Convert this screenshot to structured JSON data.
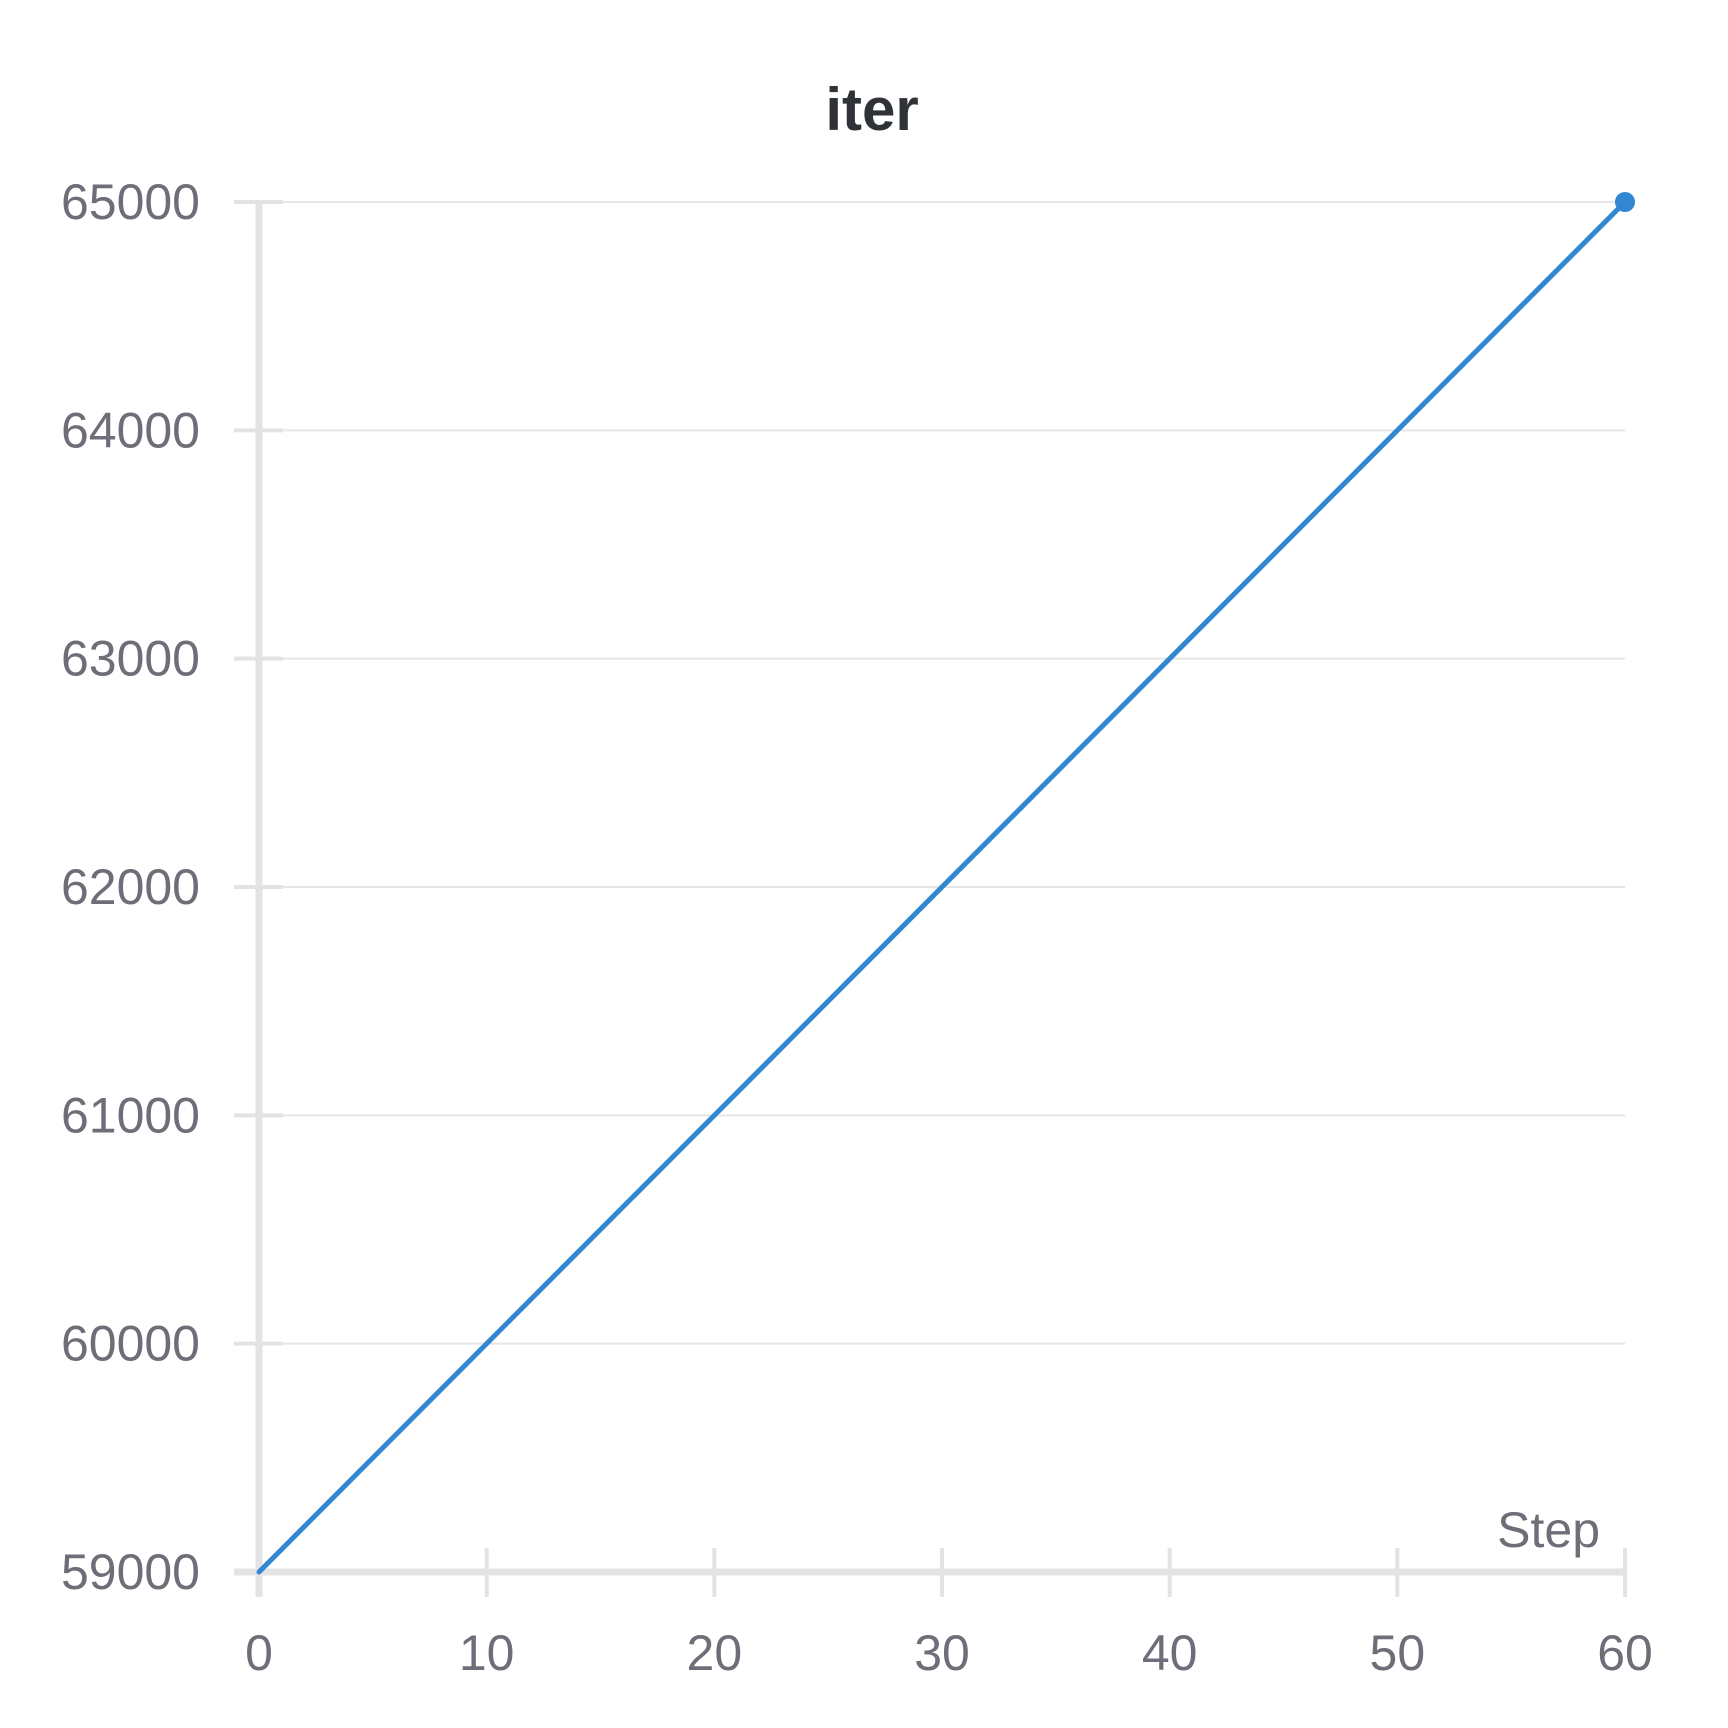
{
  "chart_data": {
    "type": "line",
    "title": "iter",
    "xlabel": "Step",
    "ylabel": "",
    "x_ticks": [
      "0",
      "10",
      "20",
      "30",
      "40",
      "50",
      "60"
    ],
    "y_ticks": [
      "59000",
      "60000",
      "61000",
      "62000",
      "63000",
      "64000",
      "65000"
    ],
    "xlim": [
      0,
      60
    ],
    "ylim": [
      59000,
      65000
    ],
    "grid": true,
    "series": [
      {
        "color": "#3187d2",
        "x": [
          0,
          60
        ],
        "y": [
          59000,
          65000
        ]
      }
    ]
  }
}
